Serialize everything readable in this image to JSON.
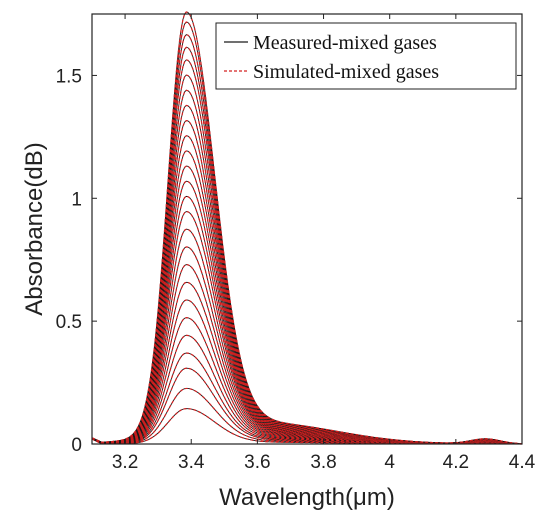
{
  "chart_data": {
    "type": "line",
    "title": "",
    "xlabel": "Wavelength(μm)",
    "ylabel": "Absorbance(dB)",
    "xlim": [
      3.1,
      4.4
    ],
    "ylim": [
      0,
      1.75
    ],
    "x_ticks": [
      3.2,
      3.4,
      3.6,
      3.8,
      4,
      4.2,
      4.4
    ],
    "x_tick_labels": [
      "3.2",
      "3.4",
      "3.6",
      "3.8",
      "4",
      "4.2",
      "4.4"
    ],
    "y_ticks": [
      0,
      0.5,
      1,
      1.5
    ],
    "y_tick_labels": [
      "0",
      "0.5",
      "1",
      "1.5"
    ],
    "grid": false,
    "legend_position": "top-right",
    "series": [
      {
        "name": "Measured-mixed gases",
        "color": "#1a1a1a",
        "style": "solid"
      },
      {
        "name": "Simulated-mixed gases",
        "color": "#d42020",
        "style": "dashed"
      }
    ],
    "peak_wavelength": 3.385,
    "minor_peak_wavelength": 4.29,
    "curve_peak_values": [
      0.14,
      0.22,
      0.3,
      0.36,
      0.43,
      0.5,
      0.57,
      0.64,
      0.71,
      0.78,
      0.85,
      0.92,
      0.98,
      1.04,
      1.1,
      1.16,
      1.22,
      1.28,
      1.34,
      1.4,
      1.46,
      1.52,
      1.57,
      1.62,
      1.67,
      1.71
    ]
  }
}
